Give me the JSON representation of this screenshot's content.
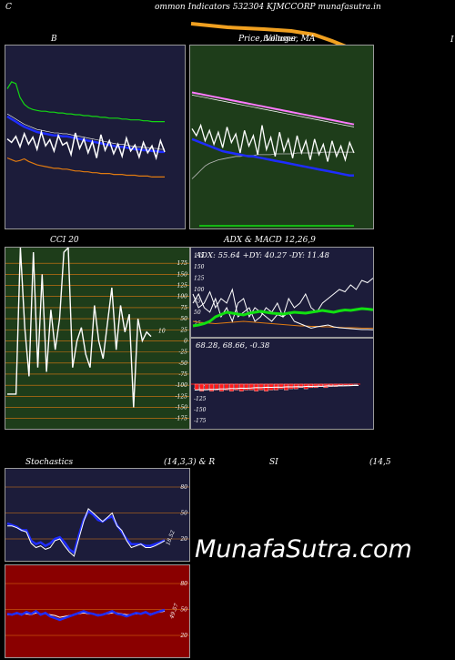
{
  "header": {
    "left_letter": "C",
    "title": "ommon  Indicators 532304  KJMCCORP munafasutra.in"
  },
  "labels": {
    "bb": "B",
    "price": "Price,  Volume,  MA",
    "bollinger": "Bollinger",
    "cci": "CCI 20",
    "adx_macd": "ADX  & MACD 12,26,9",
    "adx_values": "ADX: 55.64  +DY: 40.27 -DY: 11.48",
    "macd_values": "68.28,  68.66,  -0.38",
    "stochastics": "Stochastics",
    "stoch_params": "(14,3,3) & R",
    "si": "SI",
    "si_params": "(14,5",
    "cci_last": "10",
    "stoch_last": "18.52",
    "rsi_last": "49.57",
    "right_edge": "I"
  },
  "watermark": "MunafaSutra.com",
  "colors": {
    "panel_navy": "#1c1c3a",
    "panel_green": "#1e3d1a",
    "panel_maroon": "#8a0000",
    "price_line": "#ffffff",
    "ma_blue": "#1e2cff",
    "bb_upper": "#13d613",
    "bb_lower": "#e07a10",
    "adx_green": "#11e011",
    "macd_red": "#ff1a1a",
    "ma_pink": "#ff7aff",
    "volume_orange": "#f0a020"
  },
  "chart_data": [
    {
      "type": "line",
      "panel": "bollinger",
      "series": [
        {
          "values": [
            92,
            88,
            95,
            83,
            98,
            86,
            94,
            80,
            100,
            84,
            91,
            78,
            96,
            85,
            88,
            74,
            99,
            81,
            92,
            76,
            89,
            70,
            97,
            79,
            90,
            75,
            86,
            72,
            93,
            78,
            85,
            71,
            88,
            76,
            84,
            70,
            90,
            77
          ]
        },
        {
          "values": [
            118,
            115,
            112,
            109,
            106,
            104,
            102,
            100,
            99,
            98,
            97,
            96,
            96,
            95,
            95,
            94,
            93,
            92,
            91,
            90,
            89,
            88,
            87,
            86,
            85,
            84,
            83,
            83,
            82,
            81,
            80,
            80,
            79,
            79,
            78,
            78,
            77,
            77
          ]
        },
        {
          "values": [
            150,
            158,
            156,
            140,
            132,
            128,
            126,
            125,
            124,
            124,
            123,
            123,
            122,
            122,
            121,
            121,
            120,
            120,
            119,
            119,
            118,
            118,
            117,
            117,
            116,
            116,
            116,
            115,
            115,
            114,
            114,
            114,
            113,
            113,
            112,
            112,
            112,
            112
          ]
        },
        {
          "values": [
            70,
            68,
            66,
            67,
            69,
            66,
            64,
            62,
            61,
            60,
            59,
            58,
            58,
            57,
            57,
            56,
            55,
            55,
            54,
            54,
            53,
            53,
            52,
            52,
            52,
            51,
            51,
            51,
            50,
            50,
            50,
            49,
            49,
            49,
            48,
            48,
            48,
            48
          ]
        }
      ]
    },
    {
      "type": "line",
      "panel": "price_volume_ma",
      "series": [
        {
          "values": [
            88,
            80,
            92,
            74,
            86,
            70,
            84,
            66,
            90,
            72,
            82,
            60,
            86,
            68,
            80,
            58,
            92,
            64,
            78,
            56,
            84,
            62,
            76,
            54,
            80,
            60,
            74,
            52,
            76,
            58,
            70,
            50,
            74,
            56,
            68,
            52,
            72,
            60
          ]
        },
        {
          "values": [
            130,
            129,
            128,
            127,
            126,
            125,
            124,
            123,
            122,
            121,
            120,
            119,
            118,
            117,
            116,
            115,
            114,
            113,
            112,
            111,
            110,
            109,
            108,
            107,
            106,
            105,
            104,
            103,
            102,
            101,
            100,
            99,
            98,
            97,
            96,
            95,
            94,
            93
          ]
        },
        {
          "values": [
            106,
            104,
            102,
            100,
            98,
            96,
            94,
            92,
            91,
            90,
            89,
            88,
            87,
            86,
            86,
            85,
            84,
            83,
            82,
            81,
            80,
            79,
            78,
            77,
            76,
            75,
            74,
            73,
            72,
            71,
            70,
            69,
            68,
            67,
            66,
            65,
            64,
            64
          ]
        },
        {
          "values": [
            60,
            65,
            70,
            75,
            78,
            80,
            82,
            83,
            84,
            85,
            86,
            86,
            87,
            87,
            87,
            88,
            88,
            88,
            88,
            89,
            89,
            89,
            89,
            89,
            90,
            90,
            90,
            90,
            90,
            90,
            91,
            91,
            91,
            91,
            91,
            91,
            91,
            91
          ]
        }
      ]
    },
    {
      "type": "line",
      "panel": "cci",
      "yticks": [
        175,
        150,
        125,
        100,
        75,
        50,
        25,
        0,
        -25,
        -50,
        -75,
        -100,
        -125,
        -150,
        -175
      ],
      "ylim": [
        -190,
        200
      ],
      "series": [
        {
          "values": [
            -120,
            -120,
            -120,
            230,
            30,
            -80,
            200,
            -60,
            150,
            -70,
            70,
            -20,
            50,
            200,
            260,
            -60,
            0,
            30,
            -30,
            -60,
            80,
            0,
            -40,
            40,
            120,
            -20,
            80,
            20,
            60,
            -150,
            50,
            0,
            20,
            10
          ]
        }
      ]
    },
    {
      "type": "line",
      "panel": "adx",
      "yticks": [
        175,
        150,
        125,
        100,
        75,
        50,
        25
      ],
      "series": [
        {
          "values": [
            20,
            22,
            25,
            30,
            40,
            45,
            50,
            48,
            46,
            44,
            48,
            50,
            52,
            50,
            48,
            47,
            46,
            48,
            50,
            49,
            48,
            50,
            52,
            54,
            52,
            50,
            53,
            55,
            54,
            56,
            58,
            57,
            55.64
          ]
        },
        {
          "values": [
            90,
            60,
            70,
            95,
            60,
            80,
            70,
            100,
            40,
            50,
            60,
            30,
            40,
            60,
            50,
            70,
            40,
            80,
            60,
            70,
            90,
            60,
            50,
            70,
            80,
            90,
            100,
            95,
            110,
            100,
            120,
            115,
            125
          ]
        },
        {
          "values": [
            70,
            90,
            60,
            50,
            80,
            40,
            60,
            30,
            70,
            80,
            40,
            60,
            50,
            40,
            30,
            45,
            40,
            50,
            30,
            25,
            20,
            15,
            18,
            20,
            22,
            18,
            16,
            15,
            14,
            13,
            12,
            12,
            11.48
          ]
        },
        {
          "values": [
            30,
            28,
            27,
            26,
            25,
            26,
            27,
            28,
            29,
            30,
            29,
            28,
            27,
            26,
            25,
            24,
            23,
            22,
            21,
            20,
            20,
            19,
            19,
            18,
            18,
            17,
            17,
            16,
            16,
            16,
            15,
            15,
            15
          ]
        }
      ]
    },
    {
      "type": "bar",
      "panel": "macd",
      "values": [
        -5,
        -6,
        -5,
        -6,
        -5,
        -6,
        -5,
        -6,
        -5,
        -6,
        -5,
        -5,
        -6,
        -5,
        -6,
        -5,
        -5,
        -4,
        -5,
        -4,
        -4,
        -3,
        -4,
        -3,
        -3,
        -2,
        -3,
        -2,
        -2,
        -1,
        -1,
        -1,
        -0.38
      ]
    },
    {
      "type": "line",
      "panel": "stochastics",
      "yticks": [
        80,
        50,
        20
      ],
      "series": [
        {
          "values": [
            35,
            35,
            33,
            30,
            28,
            15,
            10,
            12,
            8,
            10,
            18,
            20,
            12,
            5,
            0,
            20,
            40,
            55,
            50,
            45,
            40,
            45,
            50,
            35,
            30,
            18,
            10,
            12,
            14,
            10,
            10,
            12,
            15,
            18
          ]
        },
        {
          "values": [
            38,
            36,
            34,
            30,
            30,
            18,
            14,
            16,
            12,
            15,
            20,
            22,
            16,
            8,
            4,
            24,
            42,
            52,
            48,
            42,
            40,
            44,
            46,
            36,
            28,
            20,
            14,
            14,
            14,
            12,
            12,
            14,
            16,
            18.52
          ]
        }
      ]
    },
    {
      "type": "line",
      "panel": "rsi",
      "yticks": [
        80,
        50,
        20
      ],
      "series": [
        {
          "values": [
            45,
            44,
            46,
            44,
            47,
            45,
            48,
            44,
            46,
            42,
            40,
            38,
            40,
            42,
            44,
            46,
            48,
            46,
            45,
            43,
            44,
            46,
            48,
            45,
            44,
            42,
            44,
            46,
            45,
            47,
            44,
            46,
            48,
            49.57
          ]
        },
        {
          "values": [
            44,
            44,
            45,
            45,
            45,
            44,
            46,
            45,
            45,
            44,
            43,
            41,
            42,
            43,
            44,
            45,
            46,
            45,
            45,
            44,
            44,
            45,
            46,
            46,
            45,
            44,
            44,
            45,
            45,
            46,
            45,
            46,
            47,
            48
          ]
        }
      ]
    }
  ]
}
